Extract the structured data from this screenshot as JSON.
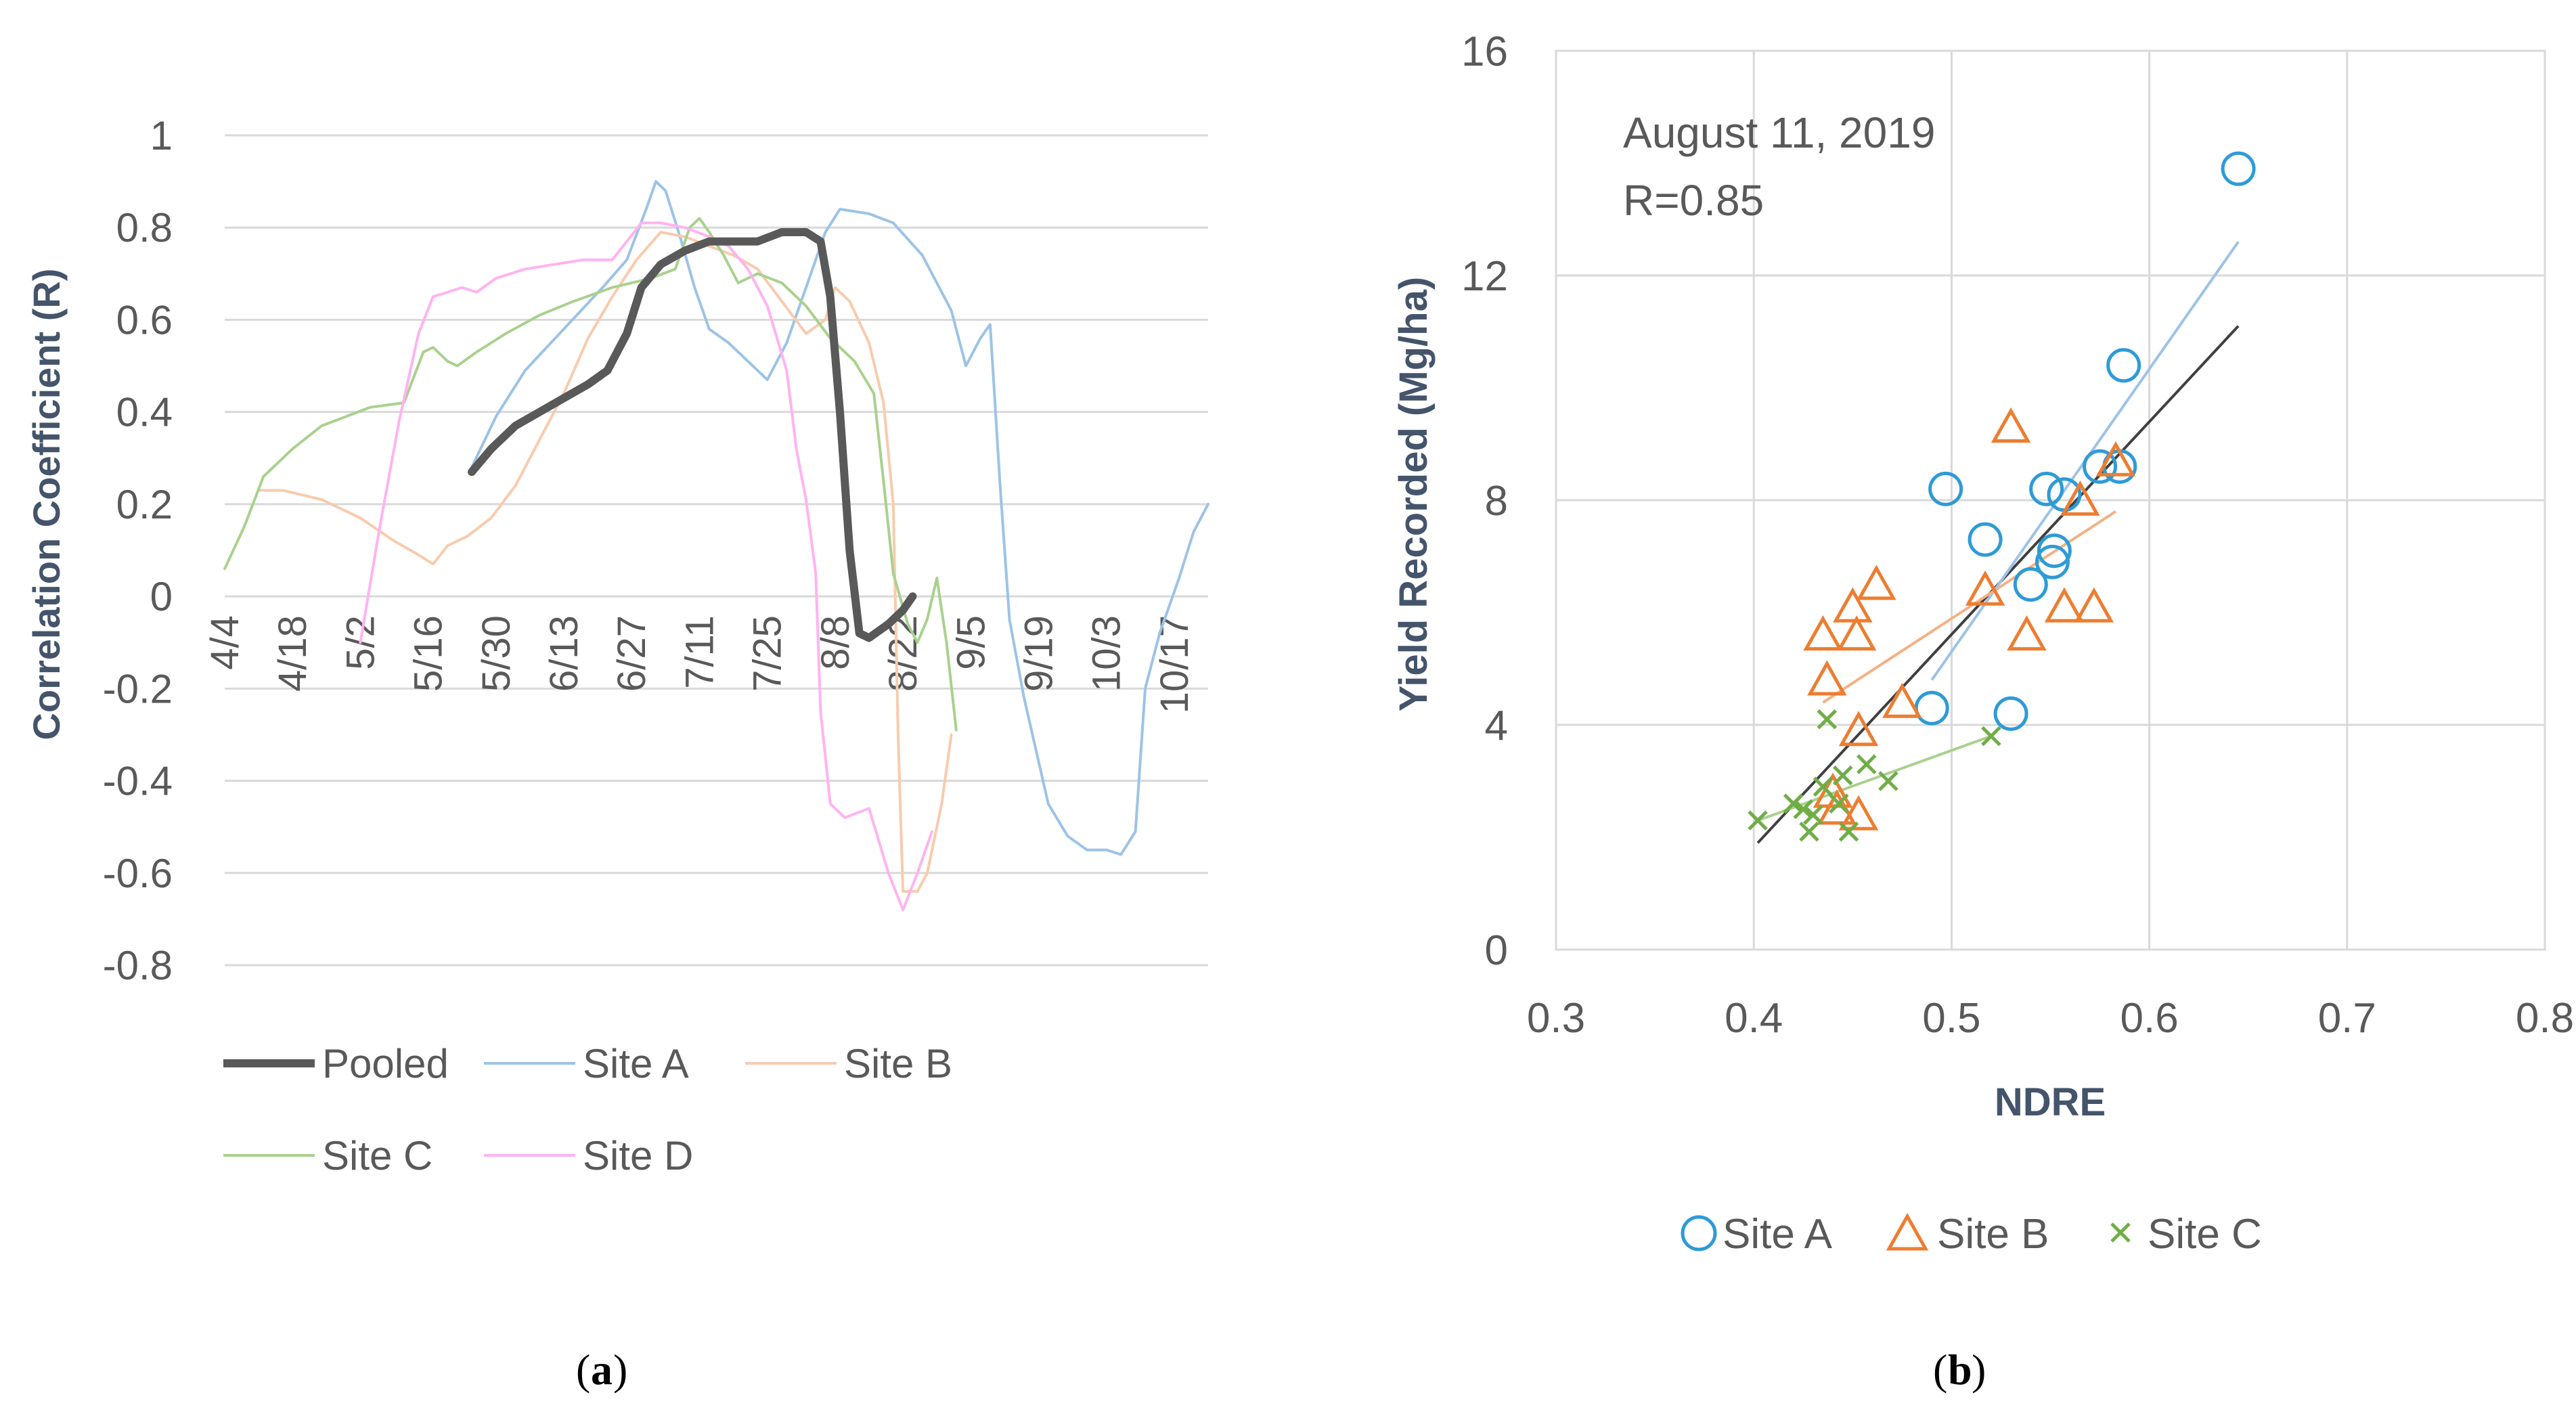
{
  "colors": {
    "pooled": "#595959",
    "site_a": "#9dc3e6",
    "site_b": "#f8cbad",
    "site_c": "#a9d18e",
    "site_d": "#ffb3f0",
    "scatter_a": "#2e9bd6",
    "scatter_b": "#ed7d31",
    "scatter_c": "#70ad47",
    "fit_pooled": "#404040",
    "fit_a": "#9dc3e6",
    "fit_b": "#f4b183",
    "fit_c": "#a9d18e",
    "grid": "#d9d9d9",
    "axis_text": "#595959",
    "axis_title": "#44546a"
  },
  "panel_labels": {
    "a": "a",
    "b": "b"
  },
  "chart_data": [
    {
      "type": "line",
      "panel": "a",
      "title": "",
      "xlabel": "",
      "ylabel": "Correlation Coefficient (R)",
      "ylim": [
        -0.8,
        1.0
      ],
      "yticks": [
        1,
        0.8,
        0.6,
        0.4,
        0.2,
        0,
        -0.2,
        -0.4,
        -0.6,
        -0.8
      ],
      "ytick_labels": [
        "1",
        "0.8",
        "0.6",
        "0.4",
        "0.2",
        "0",
        "-0.2",
        "-0.4",
        "-0.6",
        "-0.8"
      ],
      "xlim_days": [
        0,
        203
      ],
      "xticks_days": [
        0,
        14,
        28,
        42,
        56,
        70,
        84,
        98,
        112,
        126,
        140,
        154,
        168,
        182,
        196
      ],
      "xtick_labels": [
        "4/4",
        "4/18",
        "5/2",
        "5/16",
        "5/30",
        "6/13",
        "6/27",
        "7/11",
        "7/25",
        "8/8",
        "8/22",
        "9/5",
        "9/19",
        "10/3",
        "10/17"
      ],
      "x_note": "x values are days after 4/4",
      "legend_position": "bottom",
      "series": [
        {
          "name": "Pooled",
          "color_key": "pooled",
          "width": "bold",
          "points": [
            [
              51,
              0.27
            ],
            [
              55,
              0.32
            ],
            [
              60,
              0.37
            ],
            [
              65,
              0.4
            ],
            [
              70,
              0.43
            ],
            [
              75,
              0.46
            ],
            [
              79,
              0.49
            ],
            [
              83,
              0.57
            ],
            [
              86,
              0.67
            ],
            [
              90,
              0.72
            ],
            [
              95,
              0.75
            ],
            [
              100,
              0.77
            ],
            [
              105,
              0.77
            ],
            [
              110,
              0.77
            ],
            [
              115,
              0.79
            ],
            [
              120,
              0.79
            ],
            [
              123,
              0.77
            ],
            [
              125,
              0.65
            ],
            [
              127,
              0.4
            ],
            [
              129,
              0.1
            ],
            [
              131,
              -0.08
            ],
            [
              133,
              -0.09
            ],
            [
              137,
              -0.06
            ],
            [
              140,
              -0.03
            ],
            [
              142,
              0.0
            ]
          ]
        },
        {
          "name": "Site A",
          "color_key": "site_a",
          "width": "thin",
          "points": [
            [
              51,
              0.28
            ],
            [
              56,
              0.39
            ],
            [
              62,
              0.49
            ],
            [
              70,
              0.58
            ],
            [
              78,
              0.67
            ],
            [
              83,
              0.73
            ],
            [
              87,
              0.84
            ],
            [
              89,
              0.9
            ],
            [
              91,
              0.88
            ],
            [
              94,
              0.78
            ],
            [
              97,
              0.67
            ],
            [
              100,
              0.58
            ],
            [
              104,
              0.55
            ],
            [
              108,
              0.51
            ],
            [
              112,
              0.47
            ],
            [
              116,
              0.55
            ],
            [
              120,
              0.67
            ],
            [
              124,
              0.79
            ],
            [
              127,
              0.84
            ],
            [
              133,
              0.83
            ],
            [
              138,
              0.81
            ],
            [
              144,
              0.74
            ],
            [
              150,
              0.62
            ],
            [
              153,
              0.5
            ],
            [
              156,
              0.56
            ],
            [
              158,
              0.59
            ],
            [
              160,
              0.25
            ],
            [
              162,
              -0.05
            ],
            [
              165,
              -0.22
            ],
            [
              170,
              -0.45
            ],
            [
              174,
              -0.52
            ],
            [
              178,
              -0.55
            ],
            [
              182,
              -0.55
            ],
            [
              185,
              -0.56
            ],
            [
              188,
              -0.51
            ],
            [
              190,
              -0.2
            ],
            [
              193,
              -0.08
            ],
            [
              197,
              0.04
            ],
            [
              200,
              0.14
            ],
            [
              203,
              0.2
            ]
          ]
        },
        {
          "name": "Site B",
          "color_key": "site_b",
          "width": "thin",
          "points": [
            [
              7,
              0.23
            ],
            [
              12,
              0.23
            ],
            [
              20,
              0.21
            ],
            [
              28,
              0.17
            ],
            [
              35,
              0.12
            ],
            [
              40,
              0.09
            ],
            [
              43,
              0.07
            ],
            [
              46,
              0.11
            ],
            [
              50,
              0.13
            ],
            [
              55,
              0.17
            ],
            [
              60,
              0.24
            ],
            [
              65,
              0.34
            ],
            [
              70,
              0.44
            ],
            [
              75,
              0.56
            ],
            [
              80,
              0.65
            ],
            [
              85,
              0.73
            ],
            [
              90,
              0.79
            ],
            [
              95,
              0.78
            ],
            [
              100,
              0.76
            ],
            [
              105,
              0.74
            ],
            [
              110,
              0.71
            ],
            [
              115,
              0.64
            ],
            [
              120,
              0.57
            ],
            [
              124,
              0.6
            ],
            [
              126,
              0.67
            ],
            [
              129,
              0.64
            ],
            [
              133,
              0.55
            ],
            [
              136,
              0.42
            ],
            [
              138,
              0.2
            ],
            [
              139,
              -0.3
            ],
            [
              140,
              -0.64
            ],
            [
              143,
              -0.64
            ],
            [
              145,
              -0.6
            ],
            [
              148,
              -0.45
            ],
            [
              150,
              -0.3
            ]
          ]
        },
        {
          "name": "Site C",
          "color_key": "site_c",
          "width": "thin",
          "points": [
            [
              0,
              0.06
            ],
            [
              4,
              0.15
            ],
            [
              8,
              0.26
            ],
            [
              14,
              0.32
            ],
            [
              20,
              0.37
            ],
            [
              25,
              0.39
            ],
            [
              30,
              0.41
            ],
            [
              37,
              0.42
            ],
            [
              41,
              0.53
            ],
            [
              43,
              0.54
            ],
            [
              46,
              0.51
            ],
            [
              48,
              0.5
            ],
            [
              52,
              0.53
            ],
            [
              58,
              0.57
            ],
            [
              65,
              0.61
            ],
            [
              72,
              0.64
            ],
            [
              80,
              0.67
            ],
            [
              88,
              0.69
            ],
            [
              93,
              0.71
            ],
            [
              96,
              0.8
            ],
            [
              98,
              0.82
            ],
            [
              100,
              0.79
            ],
            [
              103,
              0.74
            ],
            [
              106,
              0.68
            ],
            [
              110,
              0.7
            ],
            [
              115,
              0.68
            ],
            [
              120,
              0.63
            ],
            [
              125,
              0.56
            ],
            [
              130,
              0.51
            ],
            [
              134,
              0.44
            ],
            [
              136,
              0.25
            ],
            [
              138,
              0.05
            ],
            [
              141,
              -0.06
            ],
            [
              143,
              -0.1
            ],
            [
              145,
              -0.05
            ],
            [
              147,
              0.04
            ],
            [
              149,
              -0.1
            ],
            [
              151,
              -0.29
            ]
          ]
        },
        {
          "name": "Site D",
          "color_key": "site_d",
          "width": "thin",
          "points": [
            [
              28,
              -0.1
            ],
            [
              32,
              0.15
            ],
            [
              36,
              0.38
            ],
            [
              40,
              0.57
            ],
            [
              43,
              0.65
            ],
            [
              46,
              0.66
            ],
            [
              49,
              0.67
            ],
            [
              52,
              0.66
            ],
            [
              56,
              0.69
            ],
            [
              62,
              0.71
            ],
            [
              68,
              0.72
            ],
            [
              74,
              0.73
            ],
            [
              80,
              0.73
            ],
            [
              83,
              0.77
            ],
            [
              86,
              0.81
            ],
            [
              90,
              0.81
            ],
            [
              95,
              0.8
            ],
            [
              100,
              0.78
            ],
            [
              104,
              0.76
            ],
            [
              108,
              0.71
            ],
            [
              112,
              0.63
            ],
            [
              116,
              0.49
            ],
            [
              118,
              0.32
            ],
            [
              120,
              0.21
            ],
            [
              122,
              0.05
            ],
            [
              123,
              -0.25
            ],
            [
              125,
              -0.45
            ],
            [
              128,
              -0.48
            ],
            [
              133,
              -0.46
            ],
            [
              135,
              -0.53
            ],
            [
              137,
              -0.6
            ],
            [
              140,
              -0.68
            ],
            [
              143,
              -0.6
            ],
            [
              146,
              -0.51
            ]
          ]
        }
      ]
    },
    {
      "type": "scatter",
      "panel": "b",
      "title": "August 11, 2019",
      "annotation": "R=0.85",
      "xlabel": "NDRE",
      "ylabel": "Yield Recorded (Mg/ha)",
      "xlim": [
        0.3,
        0.8
      ],
      "ylim": [
        0,
        16
      ],
      "xticks": [
        0.3,
        0.4,
        0.5,
        0.6,
        0.7,
        0.8
      ],
      "xtick_labels": [
        "0.3",
        "0.4",
        "0.5",
        "0.6",
        "0.7",
        "0.8"
      ],
      "yticks": [
        0,
        4,
        8,
        12,
        16
      ],
      "ytick_labels": [
        "0",
        "4",
        "8",
        "12",
        "16"
      ],
      "grid": true,
      "legend_position": "bottom",
      "series": [
        {
          "name": "Site A",
          "marker": "circle",
          "color_key": "scatter_a",
          "points": [
            [
              0.49,
              4.3
            ],
            [
              0.497,
              8.2
            ],
            [
              0.517,
              7.3
            ],
            [
              0.53,
              4.2
            ],
            [
              0.54,
              6.5
            ],
            [
              0.548,
              8.2
            ],
            [
              0.551,
              6.9
            ],
            [
              0.552,
              7.1
            ],
            [
              0.557,
              8.1
            ],
            [
              0.575,
              8.6
            ],
            [
              0.585,
              8.6
            ],
            [
              0.587,
              10.4
            ],
            [
              0.645,
              13.9
            ]
          ]
        },
        {
          "name": "Site B",
          "marker": "triangle",
          "color_key": "scatter_b",
          "points": [
            [
              0.435,
              5.6
            ],
            [
              0.437,
              4.8
            ],
            [
              0.44,
              2.8
            ],
            [
              0.442,
              2.5
            ],
            [
              0.45,
              6.1
            ],
            [
              0.452,
              5.6
            ],
            [
              0.453,
              3.9
            ],
            [
              0.453,
              2.4
            ],
            [
              0.462,
              6.5
            ],
            [
              0.475,
              4.4
            ],
            [
              0.517,
              6.4
            ],
            [
              0.53,
              9.3
            ],
            [
              0.538,
              5.6
            ],
            [
              0.557,
              6.1
            ],
            [
              0.565,
              8.0
            ],
            [
              0.572,
              6.1
            ],
            [
              0.583,
              8.7
            ]
          ]
        },
        {
          "name": "Site C",
          "marker": "x",
          "color_key": "scatter_c",
          "points": [
            [
              0.402,
              2.3
            ],
            [
              0.42,
              2.6
            ],
            [
              0.425,
              2.5
            ],
            [
              0.428,
              2.1
            ],
            [
              0.43,
              2.4
            ],
            [
              0.435,
              2.9
            ],
            [
              0.437,
              4.1
            ],
            [
              0.443,
              2.6
            ],
            [
              0.445,
              3.1
            ],
            [
              0.448,
              2.1
            ],
            [
              0.457,
              3.3
            ],
            [
              0.468,
              3.0
            ],
            [
              0.52,
              3.8
            ]
          ]
        }
      ],
      "trendlines": [
        {
          "name": "Pooled fit",
          "color_key": "fit_pooled",
          "from": [
            0.402,
            1.9
          ],
          "to": [
            0.645,
            11.1
          ]
        },
        {
          "name": "Site A fit",
          "color_key": "fit_a",
          "from": [
            0.49,
            4.8
          ],
          "to": [
            0.645,
            12.6
          ]
        },
        {
          "name": "Site B fit",
          "color_key": "fit_b",
          "from": [
            0.435,
            4.4
          ],
          "to": [
            0.583,
            7.8
          ]
        },
        {
          "name": "Site C fit",
          "color_key": "fit_c",
          "from": [
            0.402,
            2.3
          ],
          "to": [
            0.52,
            3.8
          ]
        }
      ]
    }
  ]
}
